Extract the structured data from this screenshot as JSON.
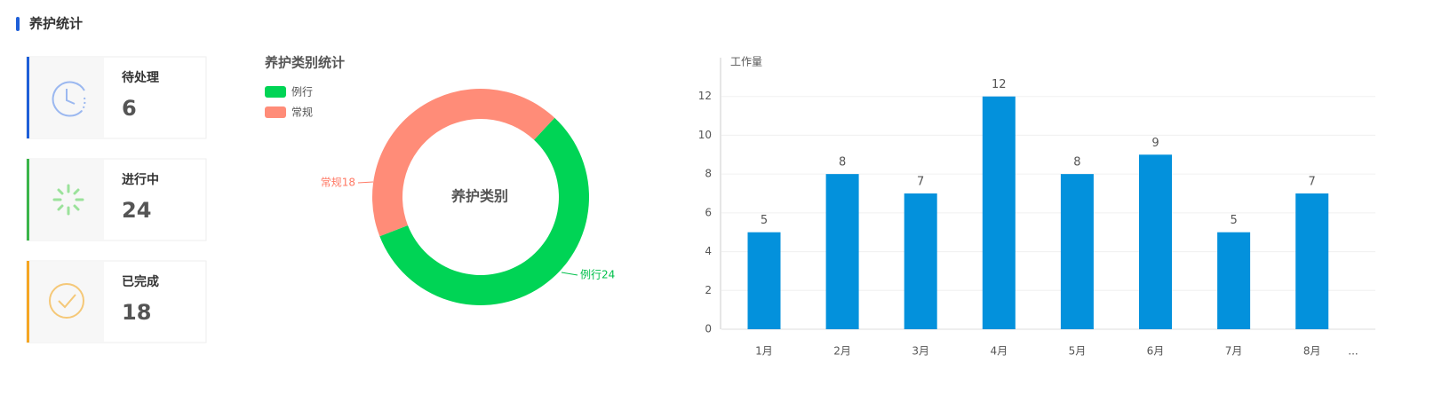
{
  "header": {
    "title": "养护统计"
  },
  "cards": [
    {
      "label": "待处理",
      "value": 6
    },
    {
      "label": "进行中",
      "value": 24
    },
    {
      "label": "已完成",
      "value": 18
    }
  ],
  "chart_data": [
    {
      "type": "pie",
      "title": "养护类别统计",
      "center_label": "养护类别",
      "categories": [
        "例行",
        "常规"
      ],
      "values": [
        24,
        18
      ],
      "value_labels": [
        "例行24",
        "常规18"
      ],
      "colors": [
        "#00d455",
        "#ff8c78"
      ]
    },
    {
      "type": "bar",
      "y_label": "工作量",
      "categories": [
        "1月",
        "2月",
        "3月",
        "4月",
        "5月",
        "6月",
        "7月",
        "8月"
      ],
      "values": [
        5,
        8,
        7,
        12,
        8,
        9,
        5,
        7
      ],
      "more_label": "...",
      "ylim": [
        0,
        14
      ],
      "yticks": [
        0,
        2,
        4,
        6,
        8,
        10,
        12
      ],
      "grid": true,
      "color": "#0391dc"
    }
  ]
}
